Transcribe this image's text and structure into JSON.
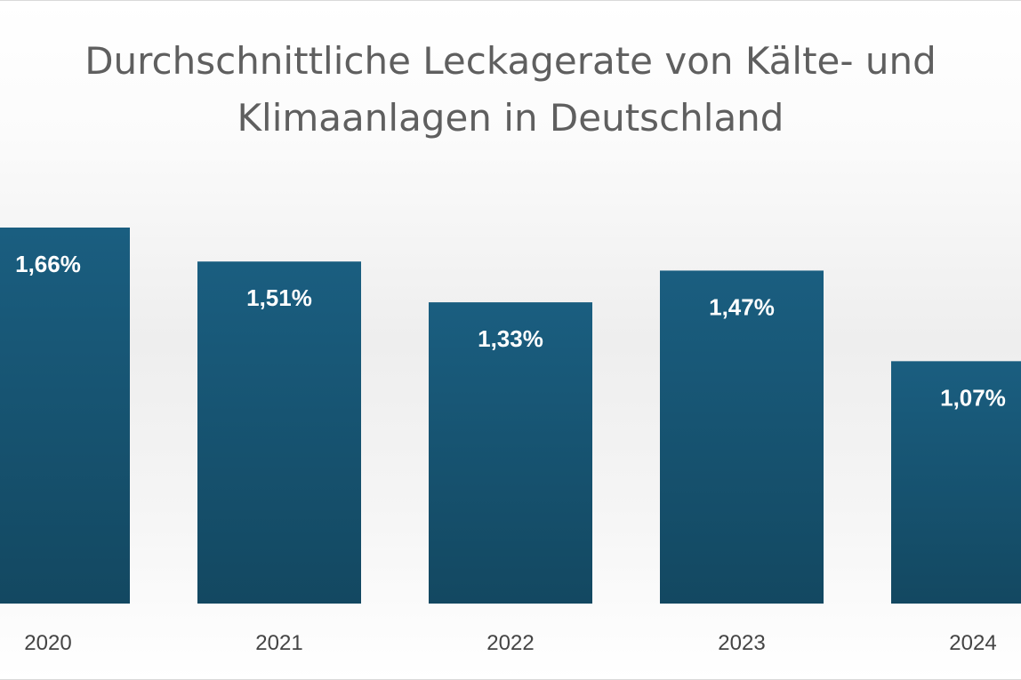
{
  "chart_data": {
    "type": "bar",
    "title": "Durchschnittliche Leckagerate von Kälte- und Klimaanlagen in Deutschland",
    "title_lines": [
      "Durchschnittliche Leckagerate von Kälte- und",
      "Klimaanlagen in Deutschland"
    ],
    "categories": [
      "2020",
      "2021",
      "2022",
      "2023",
      "2024"
    ],
    "values": [
      1.66,
      1.51,
      1.33,
      1.47,
      1.07
    ],
    "data_labels": [
      "1,66%",
      "1,51%",
      "1,33%",
      "1,47%",
      "1,07%"
    ],
    "unit": "%",
    "ylim": [
      0,
      1.66
    ],
    "grid": false,
    "legend": "none"
  },
  "colors": {
    "bar_top": "#1a5e80",
    "bar_bottom": "#134861",
    "title": "#5f5f5f",
    "data_label": "#ffffff",
    "tick_label": "#444444"
  }
}
